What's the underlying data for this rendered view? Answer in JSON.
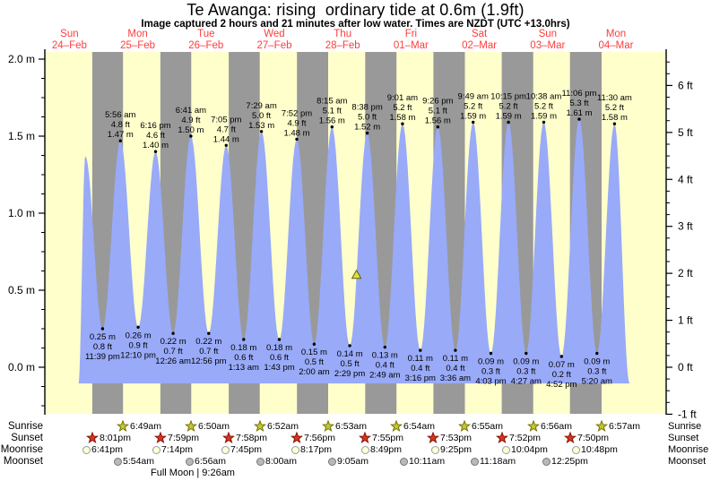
{
  "title": "Te Awanga: rising  ordinary tide at 0.6m (1.9ft)",
  "subtitle": "Image captured 2 hours and 21 minutes after low water. Times are NZDT (UTC +13.0hrs)",
  "full_moon_note": "Full Moon | 9:26am",
  "colors": {
    "background": "#ffffff",
    "day_band": "#ffffcc",
    "night_band": "#999999",
    "water": "#99aaf8",
    "day_label": "#ff3c3c",
    "axis": "#000000",
    "annotation": "#000000",
    "sunrise_star": "#c6c62d",
    "sunrise_star_stroke": "#6e6e00",
    "sunset_star": "#df3020",
    "sunset_star_stroke": "#7c1400",
    "moonrise_circle": "#ffffd8",
    "moonrise_circle_stroke": "#999999",
    "moonset_circle": "#b9b9b9",
    "moonset_circle_stroke": "#777777",
    "current_marker": "#e0e040",
    "current_marker_stroke": "#5f5f00"
  },
  "days": [
    {
      "name": "Sun",
      "date": "24–Feb",
      "noon_t": 12
    },
    {
      "name": "Mon",
      "date": "25–Feb",
      "noon_t": 36
    },
    {
      "name": "Tue",
      "date": "26–Feb",
      "noon_t": 60
    },
    {
      "name": "Wed",
      "date": "27–Feb",
      "noon_t": 84
    },
    {
      "name": "Thu",
      "date": "28–Feb",
      "noon_t": 108
    },
    {
      "name": "Fri",
      "date": "01–Mar",
      "noon_t": 132
    },
    {
      "name": "Sat",
      "date": "02–Mar",
      "noon_t": 156
    },
    {
      "name": "Sun",
      "date": "03–Mar",
      "noon_t": 180
    },
    {
      "name": "Mon",
      "date": "04–Mar",
      "noon_t": 204
    }
  ],
  "axes": {
    "left_ticks": [
      {
        "label": "2.0 m",
        "value": 2.0
      },
      {
        "label": "1.5 m",
        "value": 1.5
      },
      {
        "label": "1.0 m",
        "value": 1.0
      },
      {
        "label": "0.5 m",
        "value": 0.5
      },
      {
        "label": "0.0 m",
        "value": 0.0
      }
    ],
    "right_ticks": [
      {
        "label": "6 ft",
        "value": 6
      },
      {
        "label": "5 ft",
        "value": 5
      },
      {
        "label": "4 ft",
        "value": 4
      },
      {
        "label": "3 ft",
        "value": 3
      },
      {
        "label": "2 ft",
        "value": 2
      },
      {
        "label": "1 ft",
        "value": 1
      },
      {
        "label": "0 ft",
        "value": 0
      },
      {
        "label": "-1 ft",
        "value": -1
      }
    ]
  },
  "chart_data": {
    "type": "area",
    "title": "Te Awanga tide height",
    "x_unit": "hours since 00:00 Sun 24-Feb (NZDT)",
    "y_unit": "metres",
    "ylim_m": [
      -0.26,
      2.05
    ],
    "profile_t_h": [
      [
        15.2,
        -0.105
      ],
      [
        17.6,
        1.37
      ],
      [
        23.65,
        0.25
      ],
      [
        29.93,
        1.47
      ],
      [
        36.17,
        0.26
      ],
      [
        42.27,
        1.4
      ],
      [
        48.43,
        0.22
      ],
      [
        54.68,
        1.5
      ],
      [
        60.93,
        0.22
      ],
      [
        67.08,
        1.44
      ],
      [
        73.22,
        0.18
      ],
      [
        79.48,
        1.53
      ],
      [
        85.72,
        0.18
      ],
      [
        91.87,
        1.48
      ],
      [
        98.0,
        0.15
      ],
      [
        104.25,
        1.56
      ],
      [
        110.48,
        0.14
      ],
      [
        116.63,
        1.52
      ],
      [
        122.82,
        0.13
      ],
      [
        129.02,
        1.58
      ],
      [
        135.27,
        0.11
      ],
      [
        141.43,
        1.56
      ],
      [
        147.6,
        0.11
      ],
      [
        153.82,
        1.59
      ],
      [
        160.05,
        0.09
      ],
      [
        166.25,
        1.59
      ],
      [
        172.45,
        0.09
      ],
      [
        178.63,
        1.59
      ],
      [
        184.87,
        0.07
      ],
      [
        191.1,
        1.61
      ],
      [
        197.33,
        0.09
      ],
      [
        203.5,
        1.58
      ],
      [
        208.8,
        -0.105
      ]
    ],
    "extremes": [
      {
        "t": 23.65,
        "kind": "L",
        "height_m": 0.25,
        "lines": [
          "0.25 m",
          "0.8 ft",
          "11:39 pm"
        ]
      },
      {
        "t": 29.93,
        "kind": "H",
        "height_m": 1.47,
        "lines": [
          "5:56 am",
          "4.8 ft",
          "1.47 m"
        ]
      },
      {
        "t": 36.17,
        "kind": "L",
        "height_m": 0.26,
        "lines": [
          "0.26 m",
          "0.9 ft",
          "12:10 pm"
        ]
      },
      {
        "t": 42.27,
        "kind": "H",
        "height_m": 1.4,
        "lines": [
          "6:16 pm",
          "4.6 ft",
          "1.40 m"
        ]
      },
      {
        "t": 48.43,
        "kind": "L",
        "height_m": 0.22,
        "lines": [
          "0.22 m",
          "0.7 ft",
          "12:26 am"
        ]
      },
      {
        "t": 54.68,
        "kind": "H",
        "height_m": 1.5,
        "lines": [
          "6:41 am",
          "4.9 ft",
          "1.50 m"
        ]
      },
      {
        "t": 60.93,
        "kind": "L",
        "height_m": 0.22,
        "lines": [
          "0.22 m",
          "0.7 ft",
          "12:56 pm"
        ]
      },
      {
        "t": 67.08,
        "kind": "H",
        "height_m": 1.44,
        "lines": [
          "7:05 pm",
          "4.7 ft",
          "1.44 m"
        ]
      },
      {
        "t": 73.22,
        "kind": "L",
        "height_m": 0.18,
        "lines": [
          "0.18 m",
          "0.6 ft",
          "1:13 am"
        ]
      },
      {
        "t": 79.48,
        "kind": "H",
        "height_m": 1.53,
        "lines": [
          "7:29 am",
          "5.0 ft",
          "1.53 m"
        ]
      },
      {
        "t": 85.72,
        "kind": "L",
        "height_m": 0.18,
        "lines": [
          "0.18 m",
          "0.6 ft",
          "1:43 pm"
        ]
      },
      {
        "t": 91.87,
        "kind": "H",
        "height_m": 1.48,
        "lines": [
          "7:52 pm",
          "4.9 ft",
          "1.48 m"
        ]
      },
      {
        "t": 98.0,
        "kind": "L",
        "height_m": 0.15,
        "lines": [
          "0.15 m",
          "0.5 ft",
          "2:00 am"
        ]
      },
      {
        "t": 104.25,
        "kind": "H",
        "height_m": 1.56,
        "lines": [
          "8:15 am",
          "5.1 ft",
          "1.56 m"
        ]
      },
      {
        "t": 110.48,
        "kind": "L",
        "height_m": 0.14,
        "lines": [
          "0.14 m",
          "0.5 ft",
          "2:29 pm"
        ]
      },
      {
        "t": 116.63,
        "kind": "H",
        "height_m": 1.52,
        "lines": [
          "8:38 pm",
          "5.0 ft",
          "1.52 m"
        ]
      },
      {
        "t": 122.82,
        "kind": "L",
        "height_m": 0.13,
        "lines": [
          "0.13 m",
          "0.4 ft",
          "2:49 am"
        ]
      },
      {
        "t": 129.02,
        "kind": "H",
        "height_m": 1.58,
        "lines": [
          "9:01 am",
          "5.2 ft",
          "1.58 m"
        ]
      },
      {
        "t": 135.27,
        "kind": "L",
        "height_m": 0.11,
        "lines": [
          "0.11 m",
          "0.4 ft",
          "3:16 pm"
        ]
      },
      {
        "t": 141.43,
        "kind": "H",
        "height_m": 1.56,
        "lines": [
          "9:26 pm",
          "5.1 ft",
          "1.56 m"
        ]
      },
      {
        "t": 147.6,
        "kind": "L",
        "height_m": 0.11,
        "lines": [
          "0.11 m",
          "0.4 ft",
          "3:36 am"
        ]
      },
      {
        "t": 153.82,
        "kind": "H",
        "height_m": 1.59,
        "lines": [
          "9:49 am",
          "5.2 ft",
          "1.59 m"
        ]
      },
      {
        "t": 160.05,
        "kind": "L",
        "height_m": 0.09,
        "lines": [
          "0.09 m",
          "0.3 ft",
          "4:03 pm"
        ]
      },
      {
        "t": 166.25,
        "kind": "H",
        "height_m": 1.59,
        "lines": [
          "10:15 pm",
          "5.2 ft",
          "1.59 m"
        ]
      },
      {
        "t": 172.45,
        "kind": "L",
        "height_m": 0.09,
        "lines": [
          "0.09 m",
          "0.3 ft",
          "4:27 am"
        ]
      },
      {
        "t": 178.63,
        "kind": "H",
        "height_m": 1.59,
        "lines": [
          "10:38 am",
          "5.2 ft",
          "1.59 m"
        ]
      },
      {
        "t": 184.87,
        "kind": "L",
        "height_m": 0.07,
        "lines": [
          "0.07 m",
          "0.2 ft",
          "4:52 pm"
        ]
      },
      {
        "t": 191.1,
        "kind": "H",
        "height_m": 1.61,
        "lines": [
          "11:06 pm",
          "5.3 ft",
          "1.61 m"
        ]
      },
      {
        "t": 197.33,
        "kind": "L",
        "height_m": 0.09,
        "lines": [
          "0.09 m",
          "0.3 ft",
          "5:20 am"
        ]
      },
      {
        "t": 203.5,
        "kind": "H",
        "height_m": 1.58,
        "lines": [
          "11:30 am",
          "5.2 ft",
          "1.58 m"
        ]
      }
    ],
    "current_marker": {
      "t": 112.85,
      "height_m": 0.6
    }
  },
  "astro_rows": [
    {
      "id": "sunrise",
      "label": "Sunrise",
      "icon": "sunrise-star",
      "events": [
        {
          "t": 30.82,
          "time": "6:49am"
        },
        {
          "t": 54.83,
          "time": "6:50am"
        },
        {
          "t": 78.87,
          "time": "6:52am"
        },
        {
          "t": 102.88,
          "time": "6:53am"
        },
        {
          "t": 126.9,
          "time": "6:54am"
        },
        {
          "t": 150.92,
          "time": "6:55am"
        },
        {
          "t": 174.93,
          "time": "6:56am"
        },
        {
          "t": 198.95,
          "time": "6:57am"
        }
      ]
    },
    {
      "id": "sunset",
      "label": "Sunset",
      "icon": "sunset-star",
      "events": [
        {
          "t": 20.02,
          "time": "8:01pm"
        },
        {
          "t": 43.98,
          "time": "7:59pm"
        },
        {
          "t": 67.97,
          "time": "7:58pm"
        },
        {
          "t": 91.93,
          "time": "7:56pm"
        },
        {
          "t": 115.92,
          "time": "7:55pm"
        },
        {
          "t": 139.88,
          "time": "7:53pm"
        },
        {
          "t": 163.87,
          "time": "7:52pm"
        },
        {
          "t": 187.83,
          "time": "7:50pm"
        }
      ]
    },
    {
      "id": "moonrise",
      "label": "Moonrise",
      "icon": "moonrise-circle",
      "events": [
        {
          "t": 18.68,
          "time": "6:41pm"
        },
        {
          "t": 43.23,
          "time": "7:14pm"
        },
        {
          "t": 67.75,
          "time": "7:45pm"
        },
        {
          "t": 92.28,
          "time": "8:17pm"
        },
        {
          "t": 116.82,
          "time": "8:49pm"
        },
        {
          "t": 141.42,
          "time": "9:25pm"
        },
        {
          "t": 166.07,
          "time": "10:04pm"
        },
        {
          "t": 190.8,
          "time": "10:48pm"
        }
      ]
    },
    {
      "id": "moonset",
      "label": "Moonset",
      "icon": "moonset-circle",
      "events": [
        {
          "t": 29.9,
          "time": "5:54am"
        },
        {
          "t": 54.93,
          "time": "6:56am"
        },
        {
          "t": 80.0,
          "time": "8:00am"
        },
        {
          "t": 105.08,
          "time": "9:05am"
        },
        {
          "t": 130.18,
          "time": "10:11am"
        },
        {
          "t": 155.3,
          "time": "11:18am"
        },
        {
          "t": 180.42,
          "time": "12:25pm"
        }
      ]
    }
  ]
}
